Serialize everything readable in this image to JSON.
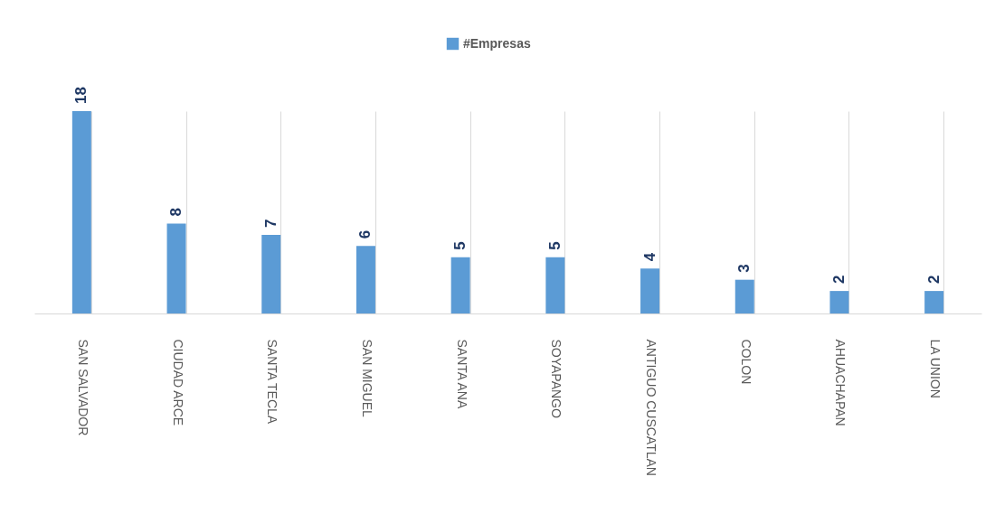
{
  "chart_data": {
    "type": "bar",
    "categories": [
      "SAN SALVADOR",
      "CIUDAD ARCE",
      "SANTA TECLA",
      "SAN MIGUEL",
      "SANTA ANA",
      "SOYAPANGO",
      "ANTIGUO CUSCATLAN",
      "COLON",
      "AHUACHAPAN",
      "LA UNION"
    ],
    "series": [
      {
        "name": "#Empresas",
        "color": "#5b9bd5",
        "values": [
          18,
          8,
          7,
          6,
          5,
          5,
          4,
          3,
          2,
          2
        ]
      }
    ],
    "data_labels": true,
    "grid": "x",
    "legend": "top"
  }
}
